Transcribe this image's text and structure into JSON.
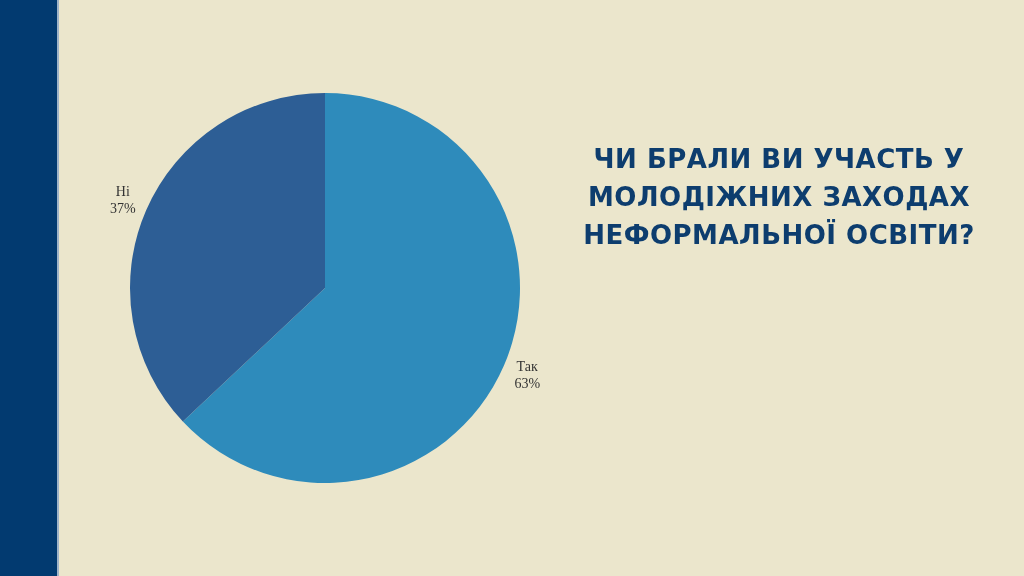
{
  "chart_data": {
    "type": "pie",
    "title": "ЧИ БРАЛИ ВИ УЧАСТЬ У МОЛОДІЖНИХ ЗАХОДАХ НЕФОРМАЛЬНОЇ ОСВІТИ?",
    "categories": [
      "Так",
      "Ні"
    ],
    "values": [
      63,
      37
    ],
    "colors": [
      "#2e8bbb",
      "#2d5e95"
    ],
    "value_labels": [
      "63%",
      "37%"
    ]
  }
}
